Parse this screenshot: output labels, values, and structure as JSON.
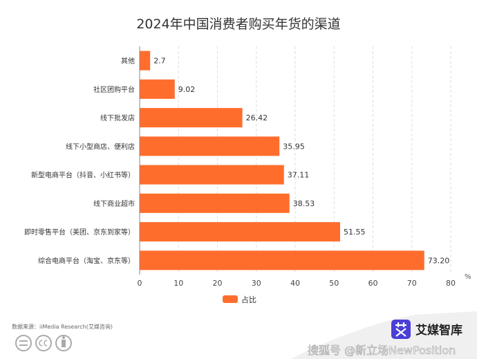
{
  "chart_data": {
    "type": "bar",
    "orientation": "horizontal",
    "title": "2024年中国消费者购买年货的渠道",
    "categories": [
      "其他",
      "社区团购平台",
      "线下批发店",
      "线下小型商店、便利店",
      "新型电商平台（抖音、小红书等）",
      "线下商业超市",
      "即时零售平台（美团、京东到家等）",
      "综合电商平台（淘宝、京东等）"
    ],
    "series": [
      {
        "name": "占比",
        "values": [
          2.7,
          9.02,
          26.42,
          35.95,
          37.11,
          38.53,
          51.55,
          73.2
        ],
        "labels": [
          "2.7",
          "9.02",
          "26.42",
          "35.95",
          "37.11",
          "38.53",
          "51.55",
          "73.20"
        ]
      }
    ],
    "xlim": [
      0,
      80
    ],
    "xticks": [
      "0",
      "10",
      "20",
      "30",
      "40",
      "50",
      "60",
      "70",
      "80"
    ],
    "unit": "%",
    "grid": "vertical dashed",
    "legend": "bottom",
    "color": "#FF6D2D"
  },
  "footer": {
    "source": "数据来源：iiMedia Research(艾媒咨询)",
    "brand": "艾媒智库",
    "watermark": "搜狐号 @新立场NewPosition"
  }
}
